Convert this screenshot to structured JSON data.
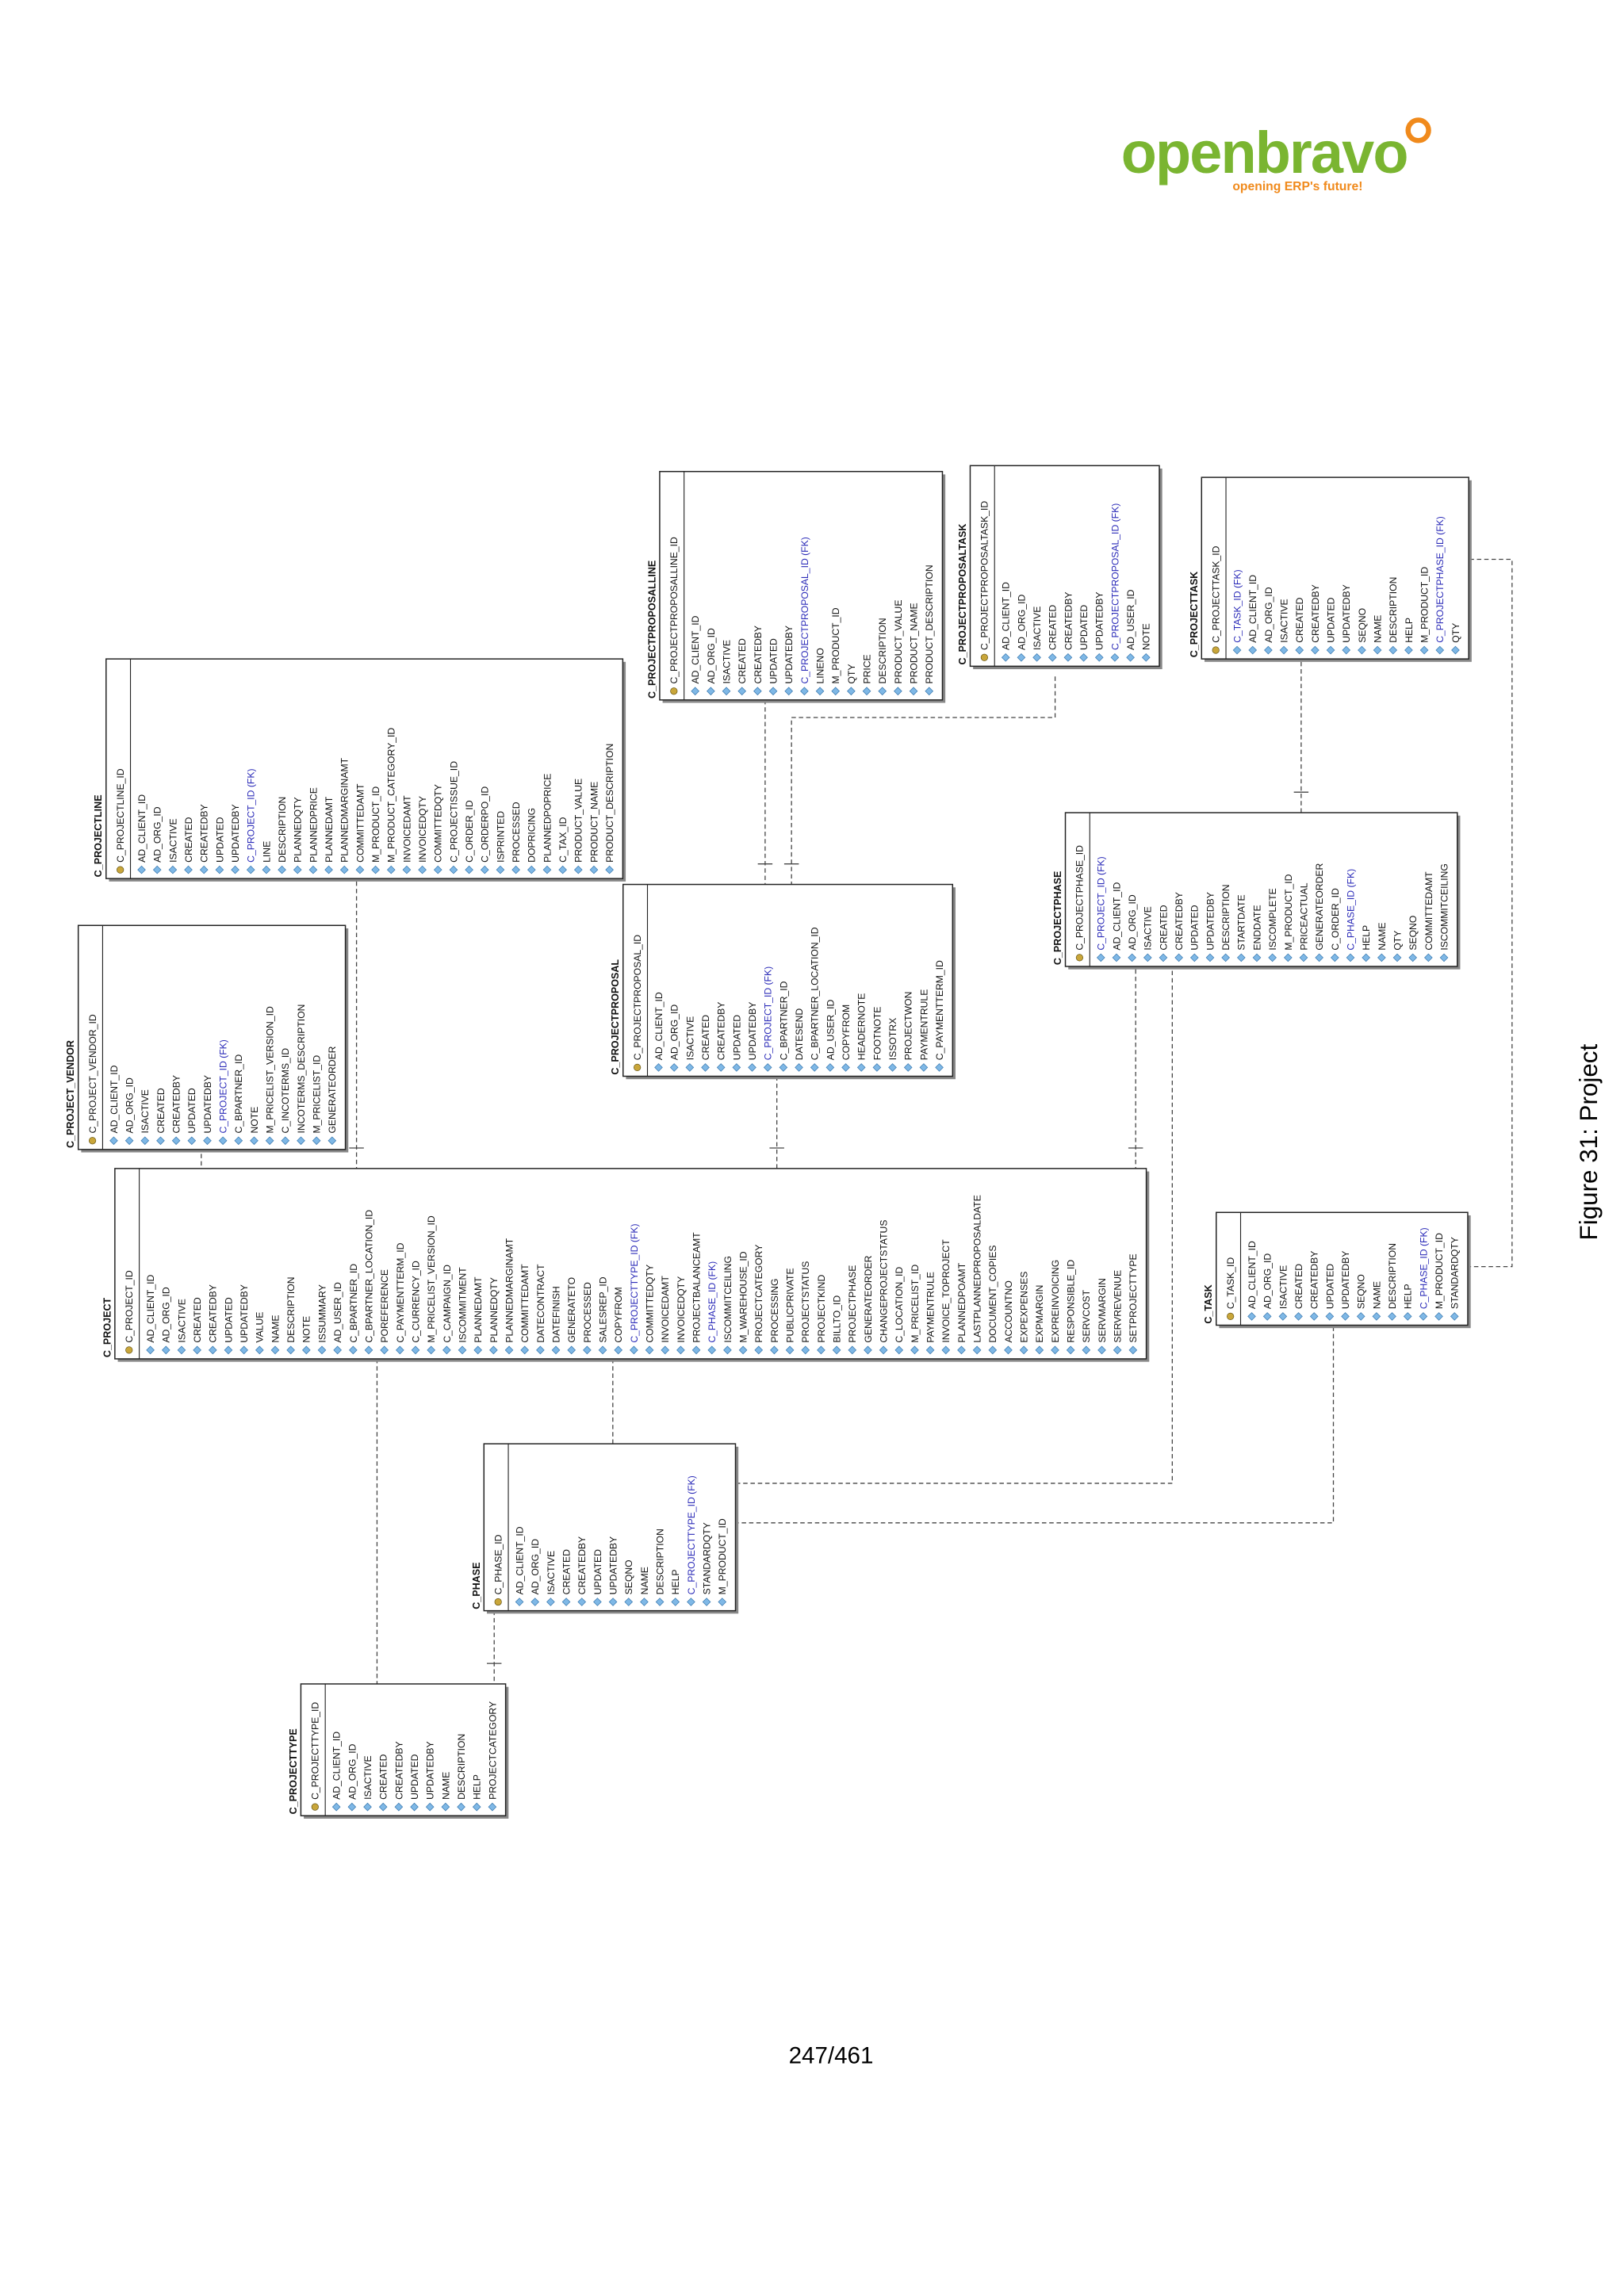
{
  "header": {
    "logo": "openbravo",
    "tagline": "opening ERP's future!"
  },
  "entities": [
    {
      "name": "C_PROJECT",
      "keys": [
        "C_PROJECT_ID"
      ],
      "fields": [
        "AD_CLIENT_ID",
        "AD_ORG_ID",
        "ISACTIVE",
        "CREATED",
        "CREATEDBY",
        "UPDATED",
        "UPDATEDBY",
        "VALUE",
        "NAME",
        "DESCRIPTION",
        "NOTE",
        "ISSUMMARY",
        "AD_USER_ID",
        "C_BPARTNER_ID",
        "C_BPARTNER_LOCATION_ID",
        "POREFERENCE",
        "C_PAYMENTTERM_ID",
        "C_CURRENCY_ID",
        "M_PRICELIST_VERSION_ID",
        "C_CAMPAIGN_ID",
        "ISCOMMITMENT",
        "PLANNEDAMT",
        "PLANNEDQTY",
        "PLANNEDMARGINAMT",
        "COMMITTEDAMT",
        "DATECONTRACT",
        "DATEFINISH",
        "GENERATETO",
        "PROCESSED",
        "SALESREP_ID",
        "COPYFROM",
        "C_PROJECTTYPE_ID (FK)",
        "COMMITTEDQTY",
        "INVOICEDAMT",
        "INVOICEDQTY",
        "PROJECTBALANCEAMT",
        "C_PHASE_ID (FK)",
        "ISCOMMITCEILING",
        "M_WAREHOUSE_ID",
        "PROJECTCATEGORY",
        "PROCESSING",
        "PUBLICPRIVATE",
        "PROJECTSTATUS",
        "PROJECTKIND",
        "BILLTO_ID",
        "PROJECTPHASE",
        "GENERATEORDER",
        "CHANGEPROJECTSTATUS",
        "C_LOCATION_ID",
        "M_PRICELIST_ID",
        "PAYMENTRULE",
        "INVOICE_TOPROJECT",
        "PLANNEDPOAMT",
        "LASTPLANNEDPROPOSALDATE",
        "DOCUMENT_COPIES",
        "ACCOUNTNO",
        "EXPEXPENSES",
        "EXPMARGIN",
        "EXPREINVOICING",
        "RESPONSIBLE_ID",
        "SERVCOST",
        "SERVMARGIN",
        "SERVREVENUE",
        "SETPROJECTTYPE"
      ]
    },
    {
      "name": "C_PROJECT_VENDOR",
      "keys": [
        "C_PROJECT_VENDOR_ID"
      ],
      "fields": [
        "AD_CLIENT_ID",
        "AD_ORG_ID",
        "ISACTIVE",
        "CREATED",
        "CREATEDBY",
        "UPDATED",
        "UPDATEDBY",
        "C_PROJECT_ID (FK)",
        "C_BPARTNER_ID",
        "NOTE",
        "M_PRICELIST_VERSION_ID",
        "C_INCOTERMS_ID",
        "INCOTERMS_DESCRIPTION",
        "M_PRICELIST_ID",
        "GENERATEORDER"
      ]
    },
    {
      "name": "C_PROJECTLINE",
      "keys": [
        "C_PROJECTLINE_ID"
      ],
      "fields": [
        "AD_CLIENT_ID",
        "AD_ORG_ID",
        "ISACTIVE",
        "CREATED",
        "CREATEDBY",
        "UPDATED",
        "UPDATEDBY",
        "C_PROJECT_ID (FK)",
        "LINE",
        "DESCRIPTION",
        "PLANNEDQTY",
        "PLANNEDPRICE",
        "PLANNEDAMT",
        "PLANNEDMARGINAMT",
        "COMMITTEDAMT",
        "M_PRODUCT_ID",
        "M_PRODUCT_CATEGORY_ID",
        "INVOICEDAMT",
        "INVOICEDQTY",
        "COMMITTEDQTY",
        "C_PROJECTISSUE_ID",
        "C_ORDER_ID",
        "C_ORDERPO_ID",
        "ISPRINTED",
        "PROCESSED",
        "DOPRICING",
        "PLANNEDPOPRICE",
        "C_TAX_ID",
        "PRODUCT_VALUE",
        "PRODUCT_NAME",
        "PRODUCT_DESCRIPTION"
      ]
    },
    {
      "name": "C_PROJECTPROPOSALLINE",
      "keys": [
        "C_PROJECTPROPOSALLINE_ID"
      ],
      "fields": [
        "AD_CLIENT_ID",
        "AD_ORG_ID",
        "ISACTIVE",
        "CREATED",
        "CREATEDBY",
        "UPDATED",
        "UPDATEDBY",
        "C_PROJECTPROPOSAL_ID (FK)",
        "LINENO",
        "M_PRODUCT_ID",
        "QTY",
        "PRICE",
        "DESCRIPTION",
        "PRODUCT_VALUE",
        "PRODUCT_NAME",
        "PRODUCT_DESCRIPTION"
      ]
    },
    {
      "name": "C_PROJECTPROPOSALTASK",
      "keys": [
        "C_PROJECTPROPOSALTASK_ID"
      ],
      "fields": [
        "AD_CLIENT_ID",
        "AD_ORG_ID",
        "ISACTIVE",
        "CREATED",
        "CREATEDBY",
        "UPDATED",
        "UPDATEDBY",
        "C_PROJECTPROPOSAL_ID (FK)",
        "AD_USER_ID",
        "NOTE"
      ]
    },
    {
      "name": "C_PROJECTTASK",
      "keys": [
        "C_PROJECTTASK_ID"
      ],
      "fields": [
        "C_TASK_ID (FK)",
        "AD_CLIENT_ID",
        "AD_ORG_ID",
        "ISACTIVE",
        "CREATED",
        "CREATEDBY",
        "UPDATED",
        "UPDATEDBY",
        "SEQNO",
        "NAME",
        "DESCRIPTION",
        "HELP",
        "M_PRODUCT_ID",
        "C_PROJECTPHASE_ID (FK)",
        "QTY"
      ]
    },
    {
      "name": "C_PROJECTPROPOSAL",
      "keys": [
        "C_PROJECTPROPOSAL_ID"
      ],
      "fields": [
        "AD_CLIENT_ID",
        "AD_ORG_ID",
        "ISACTIVE",
        "CREATED",
        "CREATEDBY",
        "UPDATED",
        "UPDATEDBY",
        "C_PROJECT_ID (FK)",
        "C_BPARTNER_ID",
        "DATESEND",
        "C_BPARTNER_LOCATION_ID",
        "AD_USER_ID",
        "COPYFROM",
        "HEADERNOTE",
        "FOOTNOTE",
        "ISSOTRX",
        "PROJECTWON",
        "PAYMENTRULE",
        "C_PAYMENTTERM_ID"
      ]
    },
    {
      "name": "C_PROJECTPHASE",
      "keys": [
        "C_PROJECTPHASE_ID"
      ],
      "fields": [
        "C_PROJECT_ID (FK)",
        "AD_CLIENT_ID",
        "AD_ORG_ID",
        "ISACTIVE",
        "CREATED",
        "CREATEDBY",
        "UPDATED",
        "UPDATEDBY",
        "DESCRIPTION",
        "STARTDATE",
        "ENDDATE",
        "ISCOMPLETE",
        "M_PRODUCT_ID",
        "PRICEACTUAL",
        "GENERATEORDER",
        "C_ORDER_ID",
        "C_PHASE_ID (FK)",
        "HELP",
        "NAME",
        "QTY",
        "SEQNO",
        "COMMITTEDAMT",
        "ISCOMMITCEILING"
      ]
    },
    {
      "name": "C_TASK",
      "keys": [
        "C_TASK_ID"
      ],
      "fields": [
        "AD_CLIENT_ID",
        "AD_ORG_ID",
        "ISACTIVE",
        "CREATED",
        "CREATEDBY",
        "UPDATED",
        "UPDATEDBY",
        "SEQNO",
        "NAME",
        "DESCRIPTION",
        "HELP",
        "C_PHASE_ID (FK)",
        "M_PRODUCT_ID",
        "STANDARDQTY"
      ]
    },
    {
      "name": "C_PHASE",
      "keys": [
        "C_PHASE_ID"
      ],
      "fields": [
        "AD_CLIENT_ID",
        "AD_ORG_ID",
        "ISACTIVE",
        "CREATED",
        "CREATEDBY",
        "UPDATED",
        "UPDATEDBY",
        "SEQNO",
        "NAME",
        "DESCRIPTION",
        "HELP",
        "C_PROJECTTYPE_ID (FK)",
        "STANDARDQTY",
        "M_PRODUCT_ID"
      ]
    },
    {
      "name": "C_PROJECTTYPE",
      "keys": [
        "C_PROJECTTYPE_ID"
      ],
      "fields": [
        "AD_CLIENT_ID",
        "AD_ORG_ID",
        "ISACTIVE",
        "CREATED",
        "CREATEDBY",
        "UPDATED",
        "UPDATEDBY",
        "NAME",
        "DESCRIPTION",
        "HELP",
        "PROJECTCATEGORY"
      ]
    }
  ],
  "caption": "Figure 31: Project",
  "footer": {
    "page": "247/461"
  }
}
